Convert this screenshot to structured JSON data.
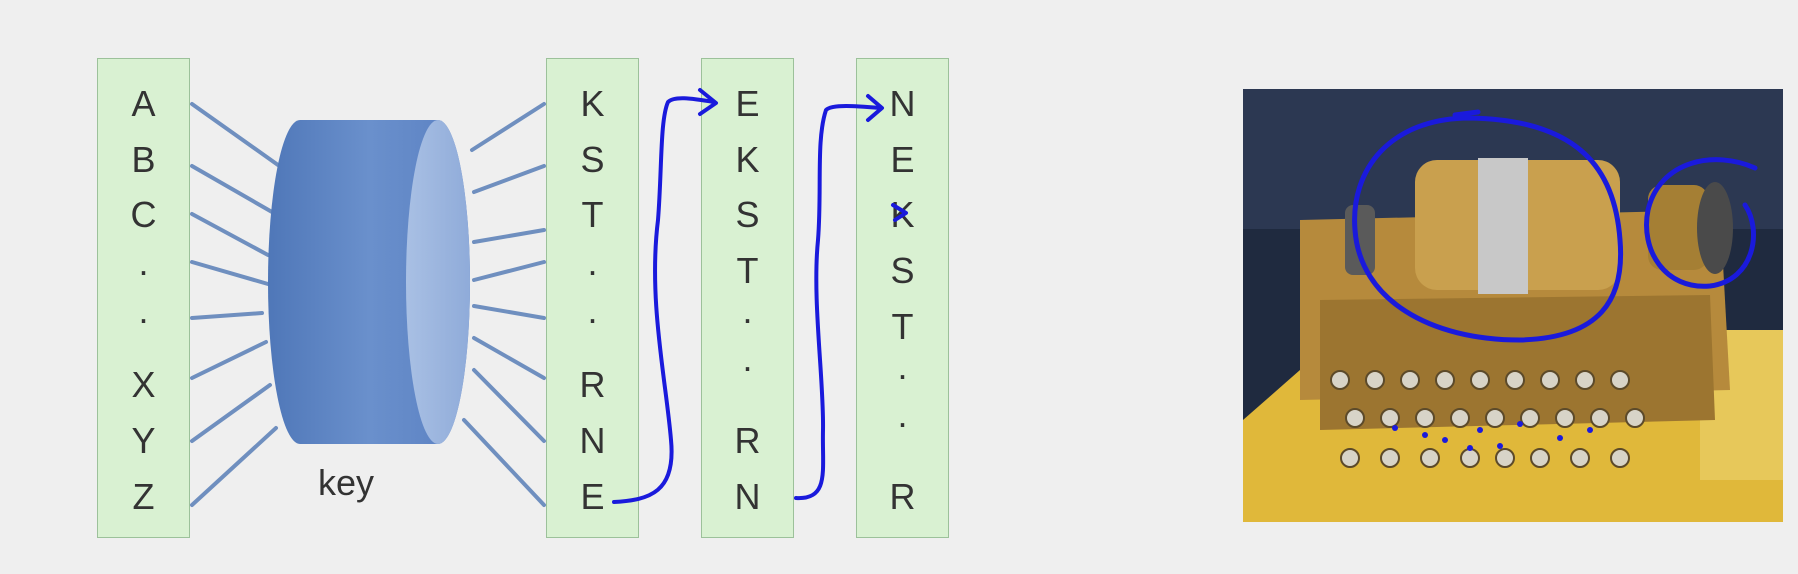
{
  "diagram": {
    "plaintext_column": [
      "A",
      "B",
      "C",
      ".",
      ".",
      "X",
      "Y",
      "Z"
    ],
    "key_label": "key",
    "ciphertext_column_1": [
      "K",
      "S",
      "T",
      ".",
      ".",
      "R",
      "N",
      "E"
    ],
    "ciphertext_column_2": [
      "E",
      "K",
      "S",
      "T",
      ".",
      ".",
      "R",
      "N"
    ],
    "ciphertext_column_3": [
      "N",
      "E",
      "K",
      "S",
      "T",
      ".",
      ".",
      "R"
    ]
  },
  "colors": {
    "background": "#efefef",
    "column_fill": "#d9f1d2",
    "connector_line": "#6f8fbf",
    "key_cylinder": "#5b82c0",
    "annotation_ink": "#1a1adc"
  },
  "photo": {
    "subject": "rotor cipher machine with annotated rotor"
  }
}
